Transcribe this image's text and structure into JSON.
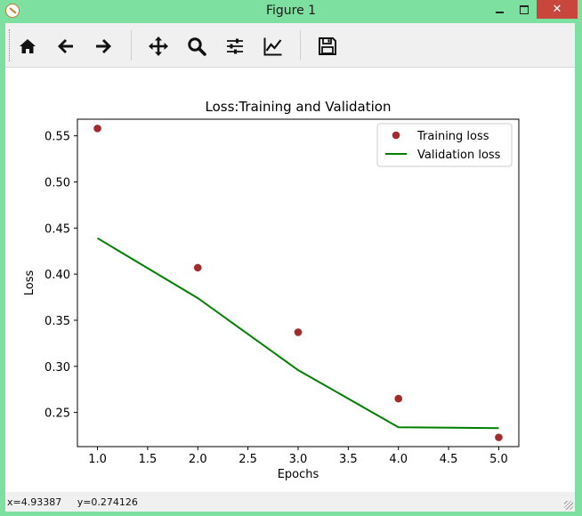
{
  "window": {
    "title": "Figure 1",
    "close_glyph": "✕"
  },
  "toolbar": {
    "tools": [
      "home-icon",
      "back-arrow-icon",
      "forward-arrow-icon",
      "pan-icon",
      "zoom-icon",
      "subplots-icon",
      "edit-axes-icon",
      "save-icon"
    ]
  },
  "status": {
    "coords": "x=4.93387     y=0.274126"
  },
  "chart_data": {
    "type": "line",
    "title": "Loss:Training and Validation",
    "xlabel": "Epochs",
    "ylabel": "Loss",
    "xlim": [
      0.8,
      5.2
    ],
    "ylim": [
      0.213,
      0.568
    ],
    "xticks": [
      "1.0",
      "1.5",
      "2.0",
      "2.5",
      "3.0",
      "3.5",
      "4.0",
      "4.5",
      "5.0"
    ],
    "yticks": [
      "0.25",
      "0.30",
      "0.35",
      "0.40",
      "0.45",
      "0.50",
      "0.55"
    ],
    "legend_position": "top-right",
    "series": [
      {
        "name": "Training loss",
        "style": "scatter",
        "color": "#a52a2a",
        "x": [
          1,
          2,
          3,
          4,
          5
        ],
        "y": [
          0.558,
          0.407,
          0.337,
          0.265,
          0.223
        ]
      },
      {
        "name": "Validation loss",
        "style": "line",
        "color": "#008000",
        "x": [
          1,
          2,
          3,
          4,
          5
        ],
        "y": [
          0.439,
          0.374,
          0.296,
          0.234,
          0.233
        ]
      }
    ]
  }
}
